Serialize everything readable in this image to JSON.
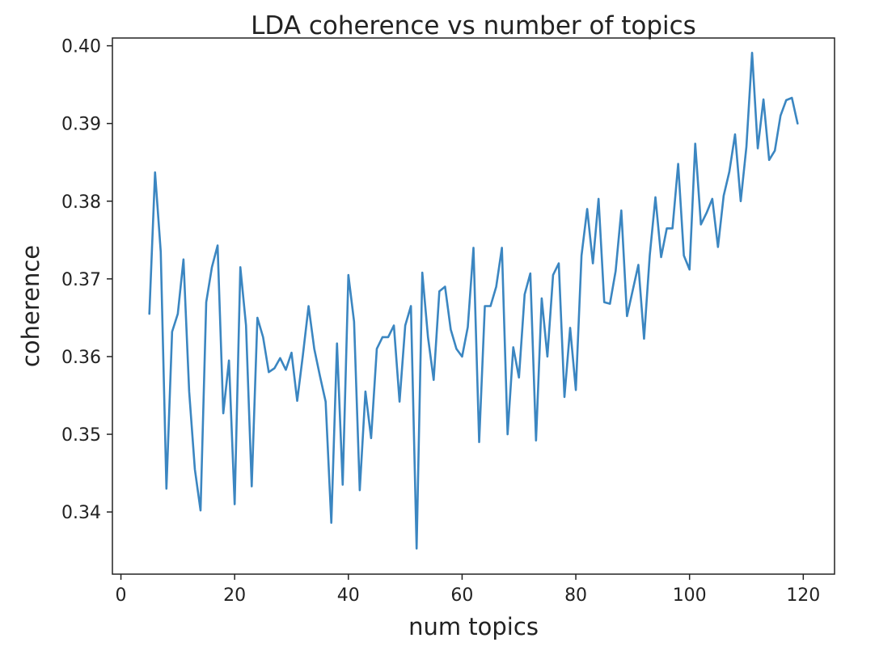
{
  "chart_data": {
    "type": "line",
    "title": "LDA coherence vs number of topics",
    "xlabel": "num topics",
    "ylabel": "coherence",
    "xlim": [
      -1.5,
      125.5
    ],
    "ylim": [
      0.332,
      0.401
    ],
    "xticks": [
      0,
      20,
      40,
      60,
      80,
      100,
      120
    ],
    "yticks": [
      0.34,
      0.35,
      0.36,
      0.37,
      0.38,
      0.39,
      0.4
    ],
    "xtick_labels": [
      "0",
      "20",
      "40",
      "60",
      "80",
      "100",
      "120"
    ],
    "ytick_labels": [
      "0.34",
      "0.35",
      "0.36",
      "0.37",
      "0.38",
      "0.39",
      "0.40"
    ],
    "grid": false,
    "line_color": "#3b86c1",
    "series": [
      {
        "x": [
          5,
          6,
          7,
          8,
          9,
          10,
          11,
          12,
          13,
          14,
          15,
          16,
          17,
          18,
          19,
          20,
          21,
          22,
          23,
          24,
          25,
          26,
          27,
          28,
          29,
          30,
          31,
          32,
          33,
          34,
          35,
          36,
          37,
          38,
          39,
          40,
          41,
          42,
          43,
          44,
          45,
          46,
          47,
          48,
          49,
          50,
          51,
          52,
          53,
          54,
          55,
          56,
          57,
          58,
          59,
          60,
          61,
          62,
          63,
          64,
          65,
          66,
          67,
          68,
          69,
          70,
          71,
          72,
          73,
          74,
          75,
          76,
          77,
          78,
          79,
          80,
          81,
          82,
          83,
          84,
          85,
          86,
          87,
          88,
          89,
          90,
          91,
          92,
          93,
          94,
          95,
          96,
          97,
          98,
          99,
          100,
          101,
          102,
          103,
          104,
          105,
          106,
          107,
          108,
          109,
          110,
          111,
          112,
          113,
          114,
          115,
          116,
          117,
          118,
          119
        ],
        "values": [
          0.3655,
          0.3837,
          0.3735,
          0.343,
          0.3632,
          0.3655,
          0.3725,
          0.3555,
          0.3455,
          0.3402,
          0.367,
          0.3715,
          0.3743,
          0.3527,
          0.3595,
          0.341,
          0.3715,
          0.364,
          0.3433,
          0.365,
          0.3625,
          0.358,
          0.3585,
          0.3598,
          0.3583,
          0.3605,
          0.3543,
          0.3602,
          0.3665,
          0.361,
          0.3575,
          0.3542,
          0.3386,
          0.3617,
          0.3435,
          0.3705,
          0.3645,
          0.3428,
          0.3555,
          0.3495,
          0.361,
          0.3625,
          0.3625,
          0.364,
          0.3542,
          0.364,
          0.3665,
          0.3353,
          0.3708,
          0.3625,
          0.357,
          0.3684,
          0.369,
          0.3635,
          0.361,
          0.36,
          0.3638,
          0.374,
          0.349,
          0.3665,
          0.3665,
          0.369,
          0.374,
          0.35,
          0.3612,
          0.3573,
          0.368,
          0.3707,
          0.3492,
          0.3675,
          0.36,
          0.3705,
          0.372,
          0.3548,
          0.3637,
          0.3557,
          0.373,
          0.379,
          0.372,
          0.3803,
          0.367,
          0.3668,
          0.371,
          0.3788,
          0.3652,
          0.3685,
          0.3718,
          0.3623,
          0.373,
          0.3805,
          0.3728,
          0.3765,
          0.3765,
          0.3848,
          0.373,
          0.3712,
          0.3874,
          0.377,
          0.3785,
          0.3803,
          0.3741,
          0.3807,
          0.3838,
          0.3886,
          0.38,
          0.387,
          0.3991,
          0.3868,
          0.3931,
          0.3853,
          0.3865,
          0.391,
          0.393,
          0.3933,
          0.39
        ]
      }
    ]
  }
}
